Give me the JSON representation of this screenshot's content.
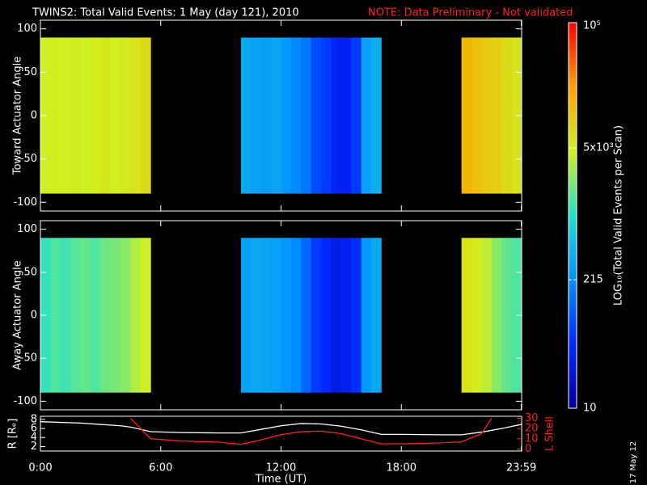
{
  "title": "TWINS2: Total Valid Events:  1 May (day 121), 2010",
  "note": "NOTE: Data Preliminary - Not validated",
  "date_stamp": "17 May 12",
  "colorbar": {
    "label": "LOG₁₀(Total Valid Events per Scan)",
    "log": true,
    "lim": [
      10,
      100000
    ],
    "ticks": [
      10,
      215,
      {
        "value": 5000,
        "label": "5x10³"
      },
      {
        "value": 100000,
        "label": "10⁵"
      }
    ],
    "colors": [
      "#0000a0",
      "#0028ff",
      "#0090ff",
      "#20e0d0",
      "#d0f020",
      "#ffa000",
      "#ff0000"
    ]
  },
  "chart_data": [
    {
      "type": "heatmap",
      "ylabel": "Toward Actuator Angle",
      "xlim": [
        0,
        24
      ],
      "ylim": [
        -110,
        110
      ],
      "yticks": [
        -100,
        -50,
        0,
        50,
        100
      ],
      "xbins": [
        0,
        0.5,
        1,
        1.5,
        2,
        2.5,
        3,
        3.5,
        4,
        4.5,
        5,
        5.5,
        6,
        6.5,
        7,
        7.5,
        8,
        8.5,
        9,
        9.5,
        10,
        10.5,
        11,
        11.5,
        12,
        12.5,
        13,
        13.5,
        14,
        14.5,
        15,
        15.5,
        16,
        16.5,
        17,
        17.5,
        18,
        18.5,
        19,
        19.5,
        20,
        20.5,
        21,
        21.5,
        22,
        22.5,
        23,
        23.5,
        24
      ],
      "ybins": [
        -90,
        90
      ],
      "values": [
        [
          4500,
          5000,
          4800,
          5200,
          4600,
          5000,
          5500,
          4800,
          5200,
          6000,
          7000,
          null,
          null,
          null,
          null,
          null,
          null,
          null,
          null,
          null,
          350,
          300,
          280,
          320,
          250,
          200,
          150,
          80,
          60,
          40,
          35,
          60,
          300,
          400,
          null,
          null,
          null,
          null,
          null,
          null,
          null,
          null,
          14000,
          12000,
          10000,
          9000,
          7000,
          6000
        ]
      ]
    },
    {
      "type": "heatmap",
      "ylabel": "Away Actuator Angle",
      "xlim": [
        0,
        24
      ],
      "ylim": [
        -110,
        110
      ],
      "yticks": [
        -100,
        -50,
        0,
        50,
        100
      ],
      "xbins": [
        0,
        0.5,
        1,
        1.5,
        2,
        2.5,
        3,
        3.5,
        4,
        4.5,
        5,
        5.5,
        6,
        6.5,
        7,
        7.5,
        8,
        8.5,
        9,
        9.5,
        10,
        10.5,
        11,
        11.5,
        12,
        12.5,
        13,
        13.5,
        14,
        14.5,
        15,
        15.5,
        16,
        16.5,
        17,
        17.5,
        18,
        18.5,
        19,
        19.5,
        20,
        20.5,
        21,
        21.5,
        22,
        22.5,
        23,
        23.5,
        24
      ],
      "ybins": [
        -90,
        90
      ],
      "values": [
        [
          1200,
          1500,
          1300,
          1600,
          1800,
          1500,
          2000,
          2200,
          2500,
          3500,
          4500,
          null,
          null,
          null,
          null,
          null,
          null,
          null,
          null,
          null,
          300,
          350,
          320,
          300,
          250,
          200,
          120,
          60,
          45,
          30,
          35,
          50,
          250,
          350,
          null,
          null,
          null,
          null,
          null,
          null,
          null,
          null,
          6000,
          5000,
          4000,
          2500,
          1800,
          1500
        ]
      ]
    },
    {
      "type": "line",
      "xlabel": "Time (UT)",
      "ylabel": "R [Rₑ]",
      "y2label": "L Shell",
      "xlim": [
        0,
        24
      ],
      "xticks": [
        {
          "value": 0,
          "label": "0:00"
        },
        {
          "value": 6,
          "label": "6:00"
        },
        {
          "value": 12,
          "label": "12:00"
        },
        {
          "value": 18,
          "label": "18:00"
        },
        {
          "value": 23.983,
          "label": "23:59"
        }
      ],
      "ylim": [
        1,
        8.7
      ],
      "yticks": [
        2,
        4,
        6,
        8
      ],
      "y2lim": [
        -2,
        32
      ],
      "y2ticks": [
        0,
        10,
        20,
        30
      ],
      "x": [
        0,
        2,
        4,
        4.5,
        5.5,
        7,
        9,
        10,
        11,
        12,
        13,
        14,
        15,
        16,
        17,
        18,
        20,
        21,
        22,
        22.5,
        23,
        24
      ],
      "series": [
        {
          "color": "#ffffff",
          "values": [
            7.5,
            7.2,
            6.6,
            6.3,
            5.3,
            5.1,
            5.0,
            5.0,
            5.8,
            6.6,
            7.1,
            7.0,
            6.5,
            5.7,
            4.7,
            4.7,
            4.6,
            4.6,
            5.2,
            5.6,
            6.0,
            6.9
          ]
        },
        {
          "color": "#ff2020",
          "axis": "y2",
          "values": [
            null,
            null,
            null,
            30,
            10,
            8,
            6.5,
            4.5,
            9,
            14,
            17,
            17.5,
            15,
            10,
            5,
            5,
            6,
            7,
            15,
            30,
            null,
            null
          ]
        }
      ]
    }
  ]
}
